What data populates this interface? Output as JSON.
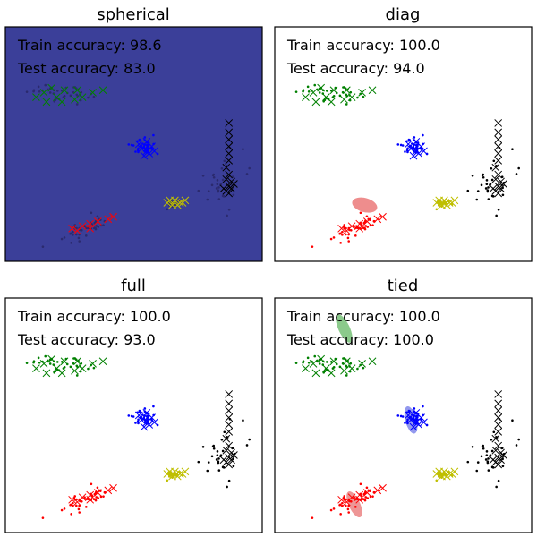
{
  "chart_data": [
    {
      "type": "scatter",
      "title": "spherical",
      "background": "#3b3f99",
      "train_accuracy_text": "Train accuracy: 98.6",
      "test_accuracy_text": "Test accuracy: 83.0",
      "ellipses": []
    },
    {
      "type": "scatter",
      "title": "diag",
      "background": "#ffffff",
      "train_accuracy_text": "Train accuracy: 100.0",
      "test_accuracy_text": "Test accuracy: 94.0",
      "ellipses": [
        {
          "cluster": "red",
          "color": "#e03030",
          "cx": 0.35,
          "cy": 0.24,
          "rx": 0.05,
          "ry": 0.03,
          "angle": -15
        }
      ]
    },
    {
      "type": "scatter",
      "title": "full",
      "background": "#ffffff",
      "train_accuracy_text": "Train accuracy: 100.0",
      "test_accuracy_text": "Test accuracy: 93.0",
      "ellipses": []
    },
    {
      "type": "scatter",
      "title": "tied",
      "background": "#ffffff",
      "train_accuracy_text": "Train accuracy: 100.0",
      "test_accuracy_text": "Test accuracy: 100.0",
      "ellipses": [
        {
          "cluster": "green",
          "color": "#2c9e2c",
          "cx": 0.27,
          "cy": 0.87,
          "rx": 0.022,
          "ry": 0.065,
          "angle": 25
        },
        {
          "cluster": "blue",
          "color": "#3a45e0",
          "cx": 0.53,
          "cy": 0.48,
          "rx": 0.022,
          "ry": 0.06,
          "angle": 15
        },
        {
          "cluster": "red",
          "color": "#e04040",
          "cx": 0.31,
          "cy": 0.12,
          "rx": 0.022,
          "ry": 0.06,
          "angle": 25
        }
      ]
    }
  ],
  "clusters": [
    {
      "name": "green",
      "color": "#008000",
      "train_center": [
        0.22,
        0.72
      ],
      "train_spread": [
        0.06,
        0.02
      ],
      "train_count": 40,
      "test_points": [
        [
          0.15,
          0.72
        ],
        [
          0.2,
          0.7
        ],
        [
          0.23,
          0.73
        ],
        [
          0.12,
          0.7
        ],
        [
          0.28,
          0.73
        ],
        [
          0.34,
          0.72
        ],
        [
          0.38,
          0.73
        ],
        [
          0.22,
          0.68
        ],
        [
          0.16,
          0.68
        ],
        [
          0.3,
          0.7
        ],
        [
          0.27,
          0.69
        ],
        [
          0.18,
          0.74
        ]
      ]
    },
    {
      "name": "blue",
      "color": "#0000ff",
      "train_center": [
        0.535,
        0.49
      ],
      "train_spread": [
        0.025,
        0.02
      ],
      "train_count": 40,
      "test_points": [
        [
          0.53,
          0.48
        ],
        [
          0.55,
          0.47
        ],
        [
          0.57,
          0.49
        ],
        [
          0.52,
          0.5
        ],
        [
          0.56,
          0.46
        ],
        [
          0.58,
          0.47
        ],
        [
          0.55,
          0.51
        ],
        [
          0.54,
          0.45
        ]
      ]
    },
    {
      "name": "yellow",
      "color": "#bfbf00",
      "train_center": [
        0.66,
        0.25
      ],
      "train_spread": [
        0.02,
        0.008
      ],
      "train_count": 30,
      "test_points": [
        [
          0.63,
          0.25
        ],
        [
          0.66,
          0.26
        ],
        [
          0.68,
          0.25
        ],
        [
          0.7,
          0.26
        ],
        [
          0.65,
          0.24
        ],
        [
          0.67,
          0.24
        ],
        [
          0.69,
          0.25
        ],
        [
          0.64,
          0.26
        ]
      ]
    },
    {
      "name": "red",
      "color": "#ff0000",
      "train_center": [
        0.31,
        0.14
      ],
      "train_spread": [
        0.06,
        0.02
      ],
      "train_count": 45,
      "test_points": [
        [
          0.26,
          0.14
        ],
        [
          0.3,
          0.15
        ],
        [
          0.33,
          0.16
        ],
        [
          0.36,
          0.17
        ],
        [
          0.4,
          0.18
        ],
        [
          0.42,
          0.19
        ],
        [
          0.33,
          0.14
        ],
        [
          0.28,
          0.13
        ]
      ]
    },
    {
      "name": "black",
      "color": "#000000",
      "train_center": [
        0.84,
        0.32
      ],
      "train_spread": [
        0.04,
        0.06
      ],
      "train_count": 35,
      "test_points": [
        [
          0.87,
          0.59
        ],
        [
          0.87,
          0.55
        ],
        [
          0.87,
          0.52
        ],
        [
          0.87,
          0.49
        ],
        [
          0.87,
          0.46
        ],
        [
          0.87,
          0.43
        ],
        [
          0.86,
          0.4
        ],
        [
          0.87,
          0.37
        ],
        [
          0.86,
          0.35
        ],
        [
          0.88,
          0.34
        ],
        [
          0.87,
          0.32
        ],
        [
          0.86,
          0.3
        ],
        [
          0.88,
          0.31
        ],
        [
          0.87,
          0.29
        ],
        [
          0.89,
          0.33
        ],
        [
          0.85,
          0.31
        ]
      ]
    }
  ]
}
